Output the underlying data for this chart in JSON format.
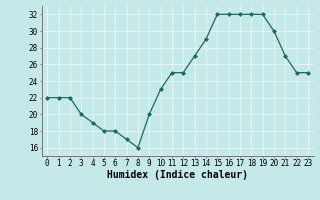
{
  "x": [
    0,
    1,
    2,
    3,
    4,
    5,
    6,
    7,
    8,
    9,
    10,
    11,
    12,
    13,
    14,
    15,
    16,
    17,
    18,
    19,
    20,
    21,
    22,
    23
  ],
  "y": [
    22,
    22,
    22,
    20,
    19,
    18,
    18,
    17,
    16,
    20,
    23,
    25,
    25,
    27,
    29,
    32,
    32,
    32,
    32,
    32,
    30,
    27,
    25,
    25
  ],
  "line_color": "#1a6b5a",
  "marker": "D",
  "marker_size": 2.0,
  "bg_color": "#c5e8e8",
  "grid_color": "#e8f8f8",
  "xlabel": "Humidex (Indice chaleur)",
  "ylim": [
    15,
    33
  ],
  "xlim": [
    -0.5,
    23.5
  ],
  "yticks": [
    16,
    18,
    20,
    22,
    24,
    26,
    28,
    30,
    32
  ],
  "xticks": [
    0,
    1,
    2,
    3,
    4,
    5,
    6,
    7,
    8,
    9,
    10,
    11,
    12,
    13,
    14,
    15,
    16,
    17,
    18,
    19,
    20,
    21,
    22,
    23
  ],
  "xlabel_fontsize": 7,
  "tick_fontsize": 5.5,
  "linewidth": 0.9
}
